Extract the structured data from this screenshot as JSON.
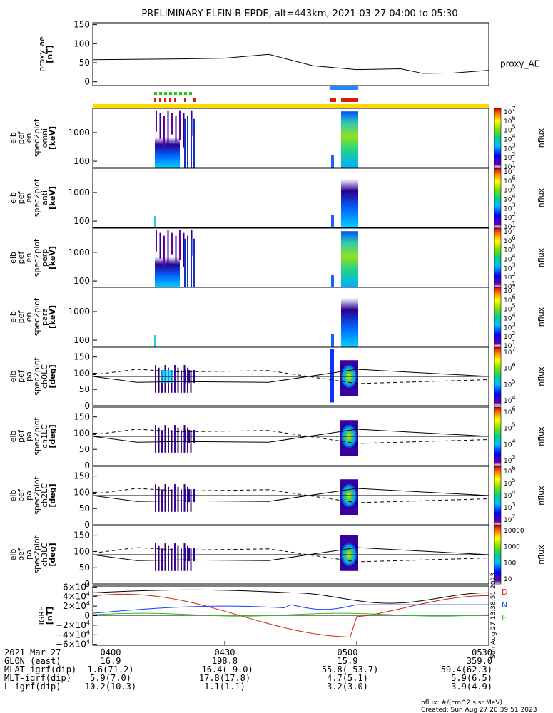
{
  "title": "PRELIMINARY ELFIN-B EPDE, alt=443km, 2021-03-27 04:00 to 05:30",
  "colors": {
    "black": "#000000",
    "red": "#d81e05",
    "blue": "#1a3cff",
    "green": "#27c11a",
    "yellow": "#ffd800",
    "flag_blue": "#1e8cff"
  },
  "chart_data": [
    {
      "type": "line",
      "panel": "proxy_ae",
      "ylabel": [
        "proxy_ae",
        "[nT]"
      ],
      "yticks": [
        "150",
        "100",
        "50",
        "0"
      ],
      "ylim": [
        -10,
        155
      ],
      "legend": "proxy_AE",
      "x_minutes": [
        0,
        20,
        30,
        40,
        50,
        60,
        70,
        75,
        82,
        90
      ],
      "values": [
        58,
        60,
        62,
        72,
        42,
        32,
        34,
        22,
        23,
        30
      ]
    },
    {
      "type": "heatmap",
      "panel": "omni",
      "ylabel": [
        "elb",
        "pef",
        "en",
        "spec2plot",
        "omni",
        "[keV]"
      ],
      "yticks": [
        "1000",
        "100"
      ],
      "ylim_keV": [
        60,
        7000
      ],
      "log": true,
      "colorbar": {
        "label": "nflux",
        "ticks": [
          "10^7",
          "10^6",
          "10^5",
          "10^4",
          "10^3",
          "10^2",
          "10^1"
        ]
      }
    },
    {
      "type": "heatmap",
      "panel": "anti",
      "ylabel": [
        "elb",
        "pef",
        "en",
        "spec2plot",
        "anti",
        "[keV]"
      ],
      "yticks": [
        "1000",
        "100"
      ],
      "ylim_keV": [
        60,
        7000
      ],
      "log": true,
      "colorbar": {
        "label": "nflux",
        "ticks": [
          "10^7",
          "10^6",
          "10^5",
          "10^4",
          "10^3",
          "10^2",
          "10^1"
        ]
      }
    },
    {
      "type": "heatmap",
      "panel": "perp",
      "ylabel": [
        "elb",
        "pef",
        "en",
        "spec2plot",
        "perp",
        "[keV]"
      ],
      "yticks": [
        "1000",
        "100"
      ],
      "ylim_keV": [
        60,
        7000
      ],
      "log": true,
      "colorbar": {
        "label": "nflux",
        "ticks": [
          "10^7",
          "10^6",
          "10^5",
          "10^4",
          "10^3",
          "10^2",
          "10^1"
        ]
      }
    },
    {
      "type": "heatmap",
      "panel": "para",
      "ylabel": [
        "elb",
        "pef",
        "en",
        "spec2plot",
        "para",
        "[keV]"
      ],
      "yticks": [
        "1000",
        "100"
      ],
      "ylim_keV": [
        60,
        7000
      ],
      "log": true,
      "colorbar": {
        "label": "nflux",
        "ticks": [
          "10^7",
          "10^6",
          "10^5",
          "10^4",
          "10^3",
          "10^2",
          "10^1"
        ]
      }
    },
    {
      "type": "heatmap",
      "panel": "ch0LC",
      "ylabel": [
        "elb",
        "pef",
        "pa",
        "spec2plot",
        "ch0LC",
        "[deg]"
      ],
      "yticks": [
        "150",
        "100",
        "50",
        "0"
      ],
      "ylim": [
        0,
        180
      ],
      "colorbar": {
        "label": "nflux",
        "ticks": [
          "10^7",
          "10^6",
          "10^5",
          "10^4"
        ]
      }
    },
    {
      "type": "heatmap",
      "panel": "ch1LC",
      "ylabel": [
        "elb",
        "pef",
        "pa",
        "spec2plot",
        "ch1LC",
        "[deg]"
      ],
      "yticks": [
        "150",
        "100",
        "50",
        "0"
      ],
      "ylim": [
        0,
        180
      ],
      "colorbar": {
        "label": "nflux",
        "ticks": [
          "10^6",
          "10^5",
          "10^4",
          "10^3"
        ]
      }
    },
    {
      "type": "heatmap",
      "panel": "ch2LC",
      "ylabel": [
        "elb",
        "pef",
        "pa",
        "spec2plot",
        "ch2LC",
        "[deg]"
      ],
      "yticks": [
        "150",
        "100",
        "50",
        "0"
      ],
      "ylim": [
        0,
        180
      ],
      "colorbar": {
        "label": "nflux",
        "ticks": [
          "10^6",
          "10^5",
          "10^4",
          "10^3",
          "10^2"
        ]
      }
    },
    {
      "type": "heatmap",
      "panel": "ch3LC",
      "ylabel": [
        "elb",
        "pef",
        "pa",
        "spec2plot",
        "ch3LC",
        "[deg]"
      ],
      "yticks": [
        "150",
        "100",
        "50",
        "0"
      ],
      "ylim": [
        0,
        180
      ],
      "colorbar": {
        "label": "nflux",
        "ticks": [
          "10000",
          "1000",
          "100",
          "10"
        ]
      }
    },
    {
      "type": "line",
      "panel": "igrf",
      "ylabel": [
        "IGRF",
        "[nT]"
      ],
      "yticks": [
        "6×10^4",
        "4×10^4",
        "2×10^4",
        "0",
        "−2×10^4",
        "−4×10^4",
        "−6×10^4"
      ],
      "ylim": [
        -62000,
        62000
      ],
      "legend": [
        "D",
        "N",
        "E"
      ],
      "side_text": "Sun Aug 27 13:38:51 2023"
    }
  ],
  "xaxis": {
    "ticks": [
      "0400",
      "0430",
      "0500",
      "0530"
    ],
    "minutes": [
      0,
      30,
      60,
      90
    ],
    "rows": [
      {
        "label": "2021 Mar 27",
        "values": [
          "0400",
          "0430",
          "0500",
          "0530"
        ]
      },
      {
        "label": "GLON (east)",
        "values": [
          "16.9",
          "198.8",
          "15.9",
          "359.0"
        ]
      },
      {
        "label": "MLAT-igrf(dip)",
        "values": [
          "1.6(71.2)",
          "-16.4(-9.0)",
          "-55.8(-53.7)",
          "59.4(62.3)"
        ]
      },
      {
        "label": "MLT-igrf(dip)",
        "values": [
          "5.9(7.0)",
          "17.8(17.8)",
          "4.7(5.1)",
          "5.9(6.5)"
        ]
      },
      {
        "label": "L-igrf(dip)",
        "values": [
          "10.2(10.3)",
          "1.1(1.1)",
          "3.2(3.0)",
          "3.9(4.9)"
        ]
      }
    ]
  },
  "footer": {
    "units": "nflux: #/(cm^2 s sr MeV)",
    "created": "Created: Sun Aug 27 20:39:51 2023"
  }
}
